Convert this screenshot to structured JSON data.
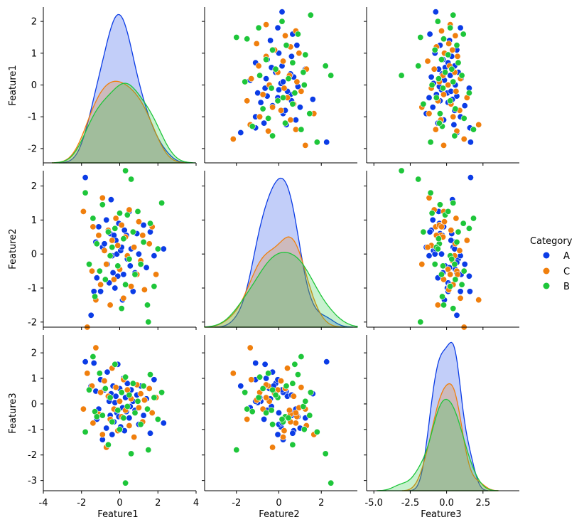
{
  "chart_data": {
    "type": "scatter",
    "title": "",
    "variables": [
      "Feature1",
      "Feature2",
      "Feature3"
    ],
    "hue": "Category",
    "legend": {
      "title": "Category",
      "placement": "right",
      "entries": [
        {
          "label": "A",
          "color": "#0b3ce6"
        },
        {
          "label": "C",
          "color": "#f07f0d"
        },
        {
          "label": "B",
          "color": "#1ec63a"
        }
      ]
    },
    "ranges": {
      "Feature1": [
        -4,
        4
      ],
      "Feature2": [
        -3.5,
        3.7
      ],
      "Feature3": [
        -5.5,
        5.0
      ]
    },
    "row_ranges": {
      "Feature1": [
        -2.45,
        2.45
      ],
      "Feature2": [
        -2.15,
        2.45
      ],
      "Feature3": [
        -3.4,
        2.7
      ]
    },
    "bottom_ticks": {
      "Feature1": [
        "-4",
        "-2",
        "0",
        "2",
        "4"
      ],
      "Feature2": [
        "-2",
        "0",
        "2"
      ],
      "Feature3": [
        "-5.0",
        "-2.5",
        "0.0",
        "2.5"
      ]
    },
    "bottom_tick_values": {
      "Feature1": [
        -4,
        -2,
        0,
        2,
        4
      ],
      "Feature2": [
        -2,
        0,
        2
      ],
      "Feature3": [
        -5,
        -2.5,
        0,
        2.5
      ]
    },
    "left_ticks": {
      "Feature1": [
        "-2",
        "-1",
        "0",
        "1",
        "2"
      ],
      "Feature2": [
        "-2",
        "-1",
        "0",
        "1",
        "2"
      ],
      "Feature3": [
        "-3",
        "-2",
        "-1",
        "0",
        "1",
        "2"
      ]
    },
    "left_tick_values": {
      "Feature1": [
        -2,
        -1,
        0,
        1,
        2
      ],
      "Feature2": [
        -2,
        -1,
        0,
        1,
        2
      ],
      "Feature3": [
        -3,
        -2,
        -1,
        0,
        1,
        2
      ]
    },
    "series": [
      {
        "name": "A",
        "color": "#0b3ce6",
        "points": [
          [
            -1.8,
            2.25,
            1.65
          ],
          [
            -1.5,
            -1.8,
            0.7
          ],
          [
            -1.35,
            -1.1,
            1.6
          ],
          [
            -1.25,
            0.35,
            0.5
          ],
          [
            -1.2,
            -0.7,
            -0.6
          ],
          [
            -1.1,
            0.8,
            -0.2
          ],
          [
            -1.0,
            -1.1,
            0.95
          ],
          [
            -0.9,
            0.2,
            -1.4
          ],
          [
            -0.8,
            0.3,
            0.55
          ],
          [
            -0.7,
            1.0,
            -0.95
          ],
          [
            -0.65,
            -0.3,
            1.25
          ],
          [
            -0.55,
            -0.85,
            0.1
          ],
          [
            -0.5,
            0.6,
            -0.45
          ],
          [
            -0.45,
            1.6,
            0.4
          ],
          [
            -0.4,
            -0.05,
            -1.2
          ],
          [
            -0.35,
            -0.55,
            0.7
          ],
          [
            -0.3,
            0.55,
            -0.7
          ],
          [
            -0.25,
            -1.0,
            0.05
          ],
          [
            -0.2,
            0.4,
            0.3
          ],
          [
            -0.15,
            0.0,
            -0.35
          ],
          [
            -0.1,
            -0.65,
            1.55
          ],
          [
            -0.05,
            0.9,
            -0.5
          ],
          [
            0.0,
            -0.45,
            0.6
          ],
          [
            0.05,
            0.1,
            -0.9
          ],
          [
            0.1,
            0.2,
            0.45
          ],
          [
            0.15,
            -1.35,
            -0.15
          ],
          [
            0.2,
            -0.6,
            1.0
          ],
          [
            0.25,
            0.7,
            -1.05
          ],
          [
            0.3,
            -0.9,
            0.25
          ],
          [
            0.35,
            0.55,
            -0.3
          ],
          [
            0.4,
            -0.15,
            0.8
          ],
          [
            0.5,
            1.25,
            -0.55
          ],
          [
            0.55,
            -0.35,
            -0.1
          ],
          [
            0.6,
            0.15,
            0.55
          ],
          [
            0.7,
            -1.1,
            0.1
          ],
          [
            0.8,
            -0.55,
            -0.25
          ],
          [
            0.9,
            0.6,
            0.35
          ],
          [
            1.0,
            0.0,
            -0.8
          ],
          [
            1.1,
            -0.25,
            0.7
          ],
          [
            1.25,
            0.85,
            -0.45
          ],
          [
            1.4,
            -0.4,
            0.2
          ],
          [
            1.6,
            0.65,
            -1.15
          ],
          [
            1.8,
            -0.05,
            0.95
          ],
          [
            2.3,
            0.15,
            -0.75
          ]
        ]
      },
      {
        "name": "C",
        "color": "#f07f0d",
        "points": [
          [
            -1.9,
            1.25,
            -0.2
          ],
          [
            -1.7,
            -2.15,
            1.2
          ],
          [
            -1.45,
            -0.5,
            0.7
          ],
          [
            -1.4,
            0.8,
            -0.75
          ],
          [
            -1.25,
            -1.35,
            2.2
          ],
          [
            -1.1,
            0.55,
            -0.4
          ],
          [
            -1.0,
            -0.9,
            0.45
          ],
          [
            -0.9,
            1.65,
            -1.2
          ],
          [
            -0.8,
            0.1,
            0.9
          ],
          [
            -0.7,
            -0.3,
            -1.7
          ],
          [
            -0.6,
            0.7,
            0.3
          ],
          [
            -0.5,
            -1.5,
            -0.6
          ],
          [
            -0.4,
            0.4,
            1.4
          ],
          [
            -0.3,
            -0.75,
            -0.2
          ],
          [
            -0.2,
            1.05,
            0.65
          ],
          [
            -0.1,
            0.25,
            -1.05
          ],
          [
            0.0,
            -0.45,
            0.1
          ],
          [
            0.1,
            0.85,
            -0.5
          ],
          [
            0.2,
            -1.3,
            0.95
          ],
          [
            0.3,
            0.5,
            -0.25
          ],
          [
            0.4,
            -0.05,
            0.55
          ],
          [
            0.5,
            1.3,
            -0.85
          ],
          [
            0.6,
            -0.95,
            0.2
          ],
          [
            0.75,
            0.2,
            -1.3
          ],
          [
            0.9,
            -0.6,
            0.75
          ],
          [
            1.0,
            0.95,
            -0.15
          ],
          [
            1.1,
            -0.2,
            0.4
          ],
          [
            1.2,
            0.55,
            -0.7
          ],
          [
            1.3,
            -1.05,
            0.15
          ],
          [
            1.55,
            0.3,
            0.6
          ],
          [
            1.7,
            0.8,
            -0.35
          ],
          [
            1.9,
            -0.6,
            0.25
          ]
        ]
      },
      {
        "name": "B",
        "color": "#1ec63a",
        "points": [
          [
            -1.8,
            1.8,
            -1.1
          ],
          [
            -1.6,
            -0.3,
            0.55
          ],
          [
            -1.4,
            1.05,
            1.85
          ],
          [
            -1.3,
            -1.25,
            -0.3
          ],
          [
            -1.2,
            0.3,
            -0.5
          ],
          [
            -1.05,
            -0.5,
            1.2
          ],
          [
            -0.9,
            1.45,
            -0.45
          ],
          [
            -0.75,
            -0.75,
            0.6
          ],
          [
            -0.6,
            0.65,
            -1.6
          ],
          [
            -0.5,
            -0.05,
            0.25
          ],
          [
            -0.4,
            0.2,
            -0.7
          ],
          [
            -0.25,
            0.75,
            1.55
          ],
          [
            -0.1,
            -0.35,
            -0.25
          ],
          [
            0.0,
            1.2,
            -1.0
          ],
          [
            0.1,
            -1.6,
            0.45
          ],
          [
            0.2,
            0.45,
            -0.55
          ],
          [
            0.3,
            -0.9,
            1.05
          ],
          [
            0.4,
            1.15,
            -0.1
          ],
          [
            0.5,
            -0.15,
            0.35
          ],
          [
            0.6,
            2.2,
            -1.95
          ],
          [
            0.7,
            0.65,
            0.8
          ],
          [
            0.8,
            -0.6,
            -0.35
          ],
          [
            0.95,
            1.25,
            0.1
          ],
          [
            1.1,
            -0.3,
            -0.8
          ],
          [
            1.25,
            0.35,
            0.7
          ],
          [
            1.45,
            -1.5,
            -0.2
          ],
          [
            1.6,
            0.9,
            1.15
          ],
          [
            1.8,
            -0.95,
            0.25
          ],
          [
            2.0,
            0.15,
            -0.6
          ],
          [
            2.2,
            1.5,
            0.45
          ],
          [
            1.5,
            -2.0,
            -1.8
          ],
          [
            0.3,
            2.45,
            -3.1
          ]
        ]
      }
    ]
  }
}
